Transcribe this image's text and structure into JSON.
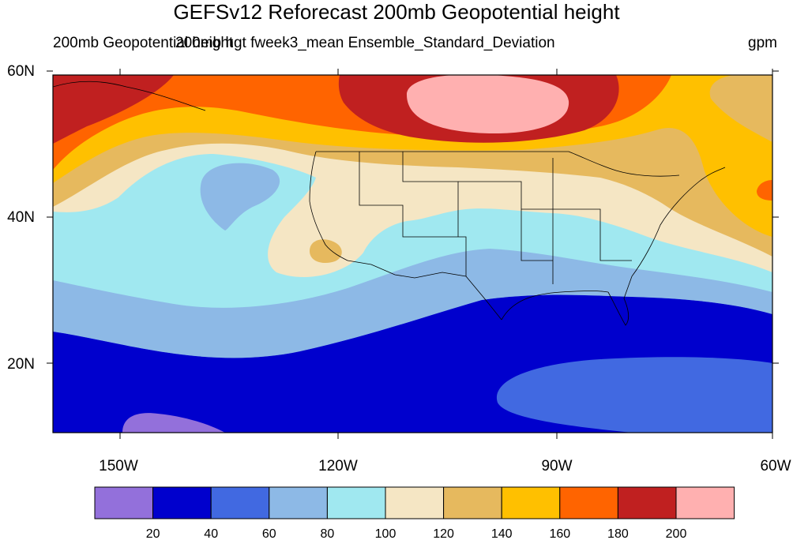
{
  "title": "GEFSv12 Reforecast 200mb Geopotential height",
  "subtitle_left": "200mb Geopotential height",
  "subtitle_center": "200mb hgt fweek3_mean Ensemble_Standard_Deviation",
  "units": "gpm",
  "lat_labels": [
    "60N",
    "40N",
    "20N"
  ],
  "lon_labels": [
    "150W",
    "120W",
    "90W",
    "60W"
  ],
  "colorbar": {
    "levels": [
      "20",
      "40",
      "60",
      "80",
      "100",
      "120",
      "140",
      "160",
      "180",
      "200"
    ],
    "colors": [
      "#9370DB",
      "#0000CD",
      "#4169E1",
      "#8DB9E6",
      "#A0E8F0",
      "#F5E6C4",
      "#E6B95E",
      "#FFC000",
      "#FF6400",
      "#C02020",
      "#FFB0B0"
    ]
  }
}
